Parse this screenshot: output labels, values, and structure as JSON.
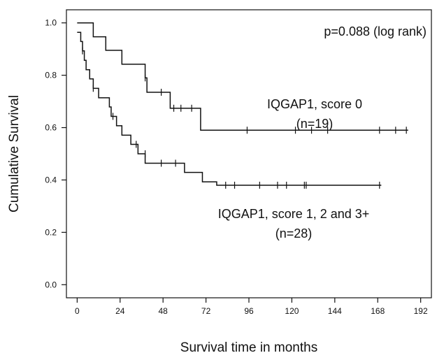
{
  "chart_data": {
    "type": "line",
    "subtype": "kaplan-meier",
    "xlabel": "Survival time in months",
    "ylabel": "Cumulative Survival",
    "xlim": [
      -6,
      198
    ],
    "ylim": [
      -0.05,
      1.05
    ],
    "xticks": [
      0,
      24,
      48,
      72,
      96,
      120,
      144,
      168,
      192
    ],
    "yticks": [
      0.0,
      0.2,
      0.4,
      0.6,
      0.8,
      1.0
    ],
    "ytick_labels": [
      "0.0",
      "0.2",
      "0.4",
      "0.6",
      "0.8",
      "1.0"
    ],
    "grid": false,
    "annotation": "p=0.088 (log rank)",
    "series": [
      {
        "label_lines": [
          "IQGAP1, score 0",
          "(n=19)"
        ],
        "steps": [
          [
            0,
            1.0
          ],
          [
            9,
            0.947
          ],
          [
            16,
            0.895
          ],
          [
            25,
            0.842
          ],
          [
            38,
            0.79
          ],
          [
            39,
            0.735
          ],
          [
            52,
            0.674
          ],
          [
            69,
            0.59
          ],
          [
            185,
            0.59
          ]
        ],
        "censored": [
          [
            38,
            0.79
          ],
          [
            47,
            0.735
          ],
          [
            54,
            0.674
          ],
          [
            58,
            0.674
          ],
          [
            64,
            0.674
          ],
          [
            95,
            0.59
          ],
          [
            122,
            0.59
          ],
          [
            131,
            0.59
          ],
          [
            140,
            0.59
          ],
          [
            169,
            0.59
          ],
          [
            178,
            0.59
          ],
          [
            184,
            0.59
          ]
        ]
      },
      {
        "label_lines": [
          "IQGAP1, score 1, 2 and 3+",
          "(n=28)"
        ],
        "steps": [
          [
            0,
            0.964
          ],
          [
            2,
            0.929
          ],
          [
            3,
            0.893
          ],
          [
            4,
            0.857
          ],
          [
            5,
            0.821
          ],
          [
            7,
            0.786
          ],
          [
            9,
            0.75
          ],
          [
            12,
            0.714
          ],
          [
            18,
            0.679
          ],
          [
            19,
            0.643
          ],
          [
            22,
            0.607
          ],
          [
            25,
            0.571
          ],
          [
            30,
            0.536
          ],
          [
            34,
            0.5
          ],
          [
            38,
            0.464
          ],
          [
            60,
            0.429
          ],
          [
            70,
            0.393
          ],
          [
            78,
            0.38
          ],
          [
            170,
            0.38
          ]
        ],
        "censored": [
          [
            3,
            0.893
          ],
          [
            9,
            0.75
          ],
          [
            20,
            0.643
          ],
          [
            33,
            0.536
          ],
          [
            38,
            0.5
          ],
          [
            47,
            0.464
          ],
          [
            55,
            0.464
          ],
          [
            83,
            0.38
          ],
          [
            88,
            0.38
          ],
          [
            102,
            0.38
          ],
          [
            112,
            0.38
          ],
          [
            117,
            0.38
          ],
          [
            127,
            0.38
          ],
          [
            128,
            0.38
          ],
          [
            169,
            0.38
          ]
        ]
      }
    ]
  }
}
